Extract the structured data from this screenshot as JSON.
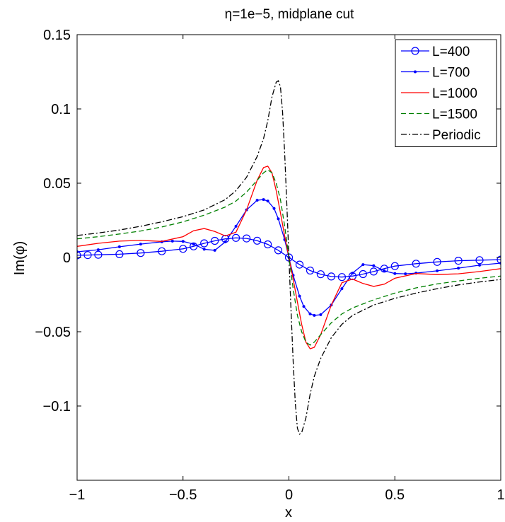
{
  "chart_data": {
    "type": "line",
    "title": "η=1e−5, midplane cut",
    "xlabel": "x",
    "ylabel": "Im(φ)",
    "xlim": [
      -1,
      1
    ],
    "ylim": [
      -0.15,
      0.15
    ],
    "x_ticks": [
      -1,
      -0.5,
      0,
      0.5,
      1
    ],
    "x_tick_labels": [
      "−1",
      "−0.5",
      "0",
      "0.5",
      "1"
    ],
    "y_ticks": [
      -0.1,
      -0.05,
      0,
      0.05,
      0.1,
      0.15
    ],
    "y_tick_labels": [
      "−0.1",
      "−0.05",
      "0",
      "0.05",
      "0.1",
      "0.15"
    ],
    "legend_position": "top-right",
    "grid": false,
    "series": [
      {
        "name": "L=400",
        "color": "#0000ff",
        "style": "solid",
        "marker": "circle",
        "x": [
          -1.0,
          -0.95,
          -0.9,
          -0.8,
          -0.7,
          -0.6,
          -0.5,
          -0.45,
          -0.4,
          -0.35,
          -0.3,
          -0.25,
          -0.2,
          -0.15,
          -0.1,
          -0.05,
          0.0,
          0.05,
          0.1,
          0.15,
          0.2,
          0.25,
          0.3,
          0.35,
          0.4,
          0.45,
          0.5,
          0.6,
          0.7,
          0.8,
          0.9,
          1.0
        ],
        "values": [
          0.0015,
          0.0016,
          0.0018,
          0.0022,
          0.003,
          0.0042,
          0.0058,
          0.0075,
          0.0095,
          0.0112,
          0.0125,
          0.0132,
          0.0128,
          0.0113,
          0.0088,
          0.0048,
          0.0,
          -0.0048,
          -0.0088,
          -0.0113,
          -0.0128,
          -0.0132,
          -0.0125,
          -0.0112,
          -0.0095,
          -0.0075,
          -0.0058,
          -0.0042,
          -0.003,
          -0.0022,
          -0.0018,
          -0.0015
        ]
      },
      {
        "name": "L=700",
        "color": "#0000ff",
        "style": "solid",
        "marker": "dot",
        "x": [
          -1.0,
          -0.9,
          -0.8,
          -0.7,
          -0.6,
          -0.55,
          -0.5,
          -0.45,
          -0.4,
          -0.35,
          -0.3,
          -0.25,
          -0.2,
          -0.15,
          -0.12,
          -0.1,
          -0.07,
          -0.05,
          -0.02,
          0.0,
          0.02,
          0.05,
          0.07,
          0.1,
          0.12,
          0.15,
          0.2,
          0.25,
          0.3,
          0.35,
          0.4,
          0.45,
          0.5,
          0.55,
          0.6,
          0.7,
          0.8,
          0.9,
          1.0
        ],
        "values": [
          0.0038,
          0.0052,
          0.0072,
          0.009,
          0.0105,
          0.011,
          0.0108,
          0.009,
          0.0055,
          0.0048,
          0.0105,
          0.021,
          0.032,
          0.0385,
          0.039,
          0.038,
          0.033,
          0.026,
          0.012,
          0.0,
          -0.012,
          -0.026,
          -0.033,
          -0.038,
          -0.039,
          -0.0385,
          -0.032,
          -0.021,
          -0.0105,
          -0.0048,
          -0.0055,
          -0.009,
          -0.0108,
          -0.011,
          -0.0105,
          -0.009,
          -0.0072,
          -0.0052,
          -0.0038
        ]
      },
      {
        "name": "L=1000",
        "color": "#ff0000",
        "style": "solid",
        "marker": "none",
        "x": [
          -1.0,
          -0.9,
          -0.8,
          -0.7,
          -0.6,
          -0.5,
          -0.45,
          -0.4,
          -0.35,
          -0.3,
          -0.25,
          -0.2,
          -0.15,
          -0.12,
          -0.1,
          -0.08,
          -0.06,
          -0.04,
          -0.02,
          0.0,
          0.02,
          0.04,
          0.06,
          0.08,
          0.1,
          0.12,
          0.15,
          0.2,
          0.25,
          0.3,
          0.35,
          0.4,
          0.45,
          0.5,
          0.6,
          0.7,
          0.8,
          0.9,
          1.0
        ],
        "values": [
          0.0075,
          0.0095,
          0.011,
          0.0115,
          0.0108,
          0.014,
          0.018,
          0.0195,
          0.0175,
          0.0145,
          0.017,
          0.032,
          0.052,
          0.0605,
          0.0615,
          0.057,
          0.045,
          0.03,
          0.0145,
          0.0,
          -0.0145,
          -0.03,
          -0.045,
          -0.057,
          -0.0615,
          -0.0605,
          -0.052,
          -0.032,
          -0.017,
          -0.0145,
          -0.0175,
          -0.0195,
          -0.018,
          -0.014,
          -0.0108,
          -0.0115,
          -0.011,
          -0.0095,
          -0.0075
        ]
      },
      {
        "name": "L=1500",
        "color": "#008000",
        "style": "dashed",
        "marker": "none",
        "x": [
          -1.0,
          -0.9,
          -0.8,
          -0.7,
          -0.6,
          -0.5,
          -0.4,
          -0.3,
          -0.25,
          -0.2,
          -0.15,
          -0.12,
          -0.1,
          -0.08,
          -0.06,
          -0.04,
          -0.02,
          0.0,
          0.02,
          0.04,
          0.06,
          0.08,
          0.1,
          0.12,
          0.15,
          0.2,
          0.25,
          0.3,
          0.4,
          0.5,
          0.6,
          0.7,
          0.8,
          0.9,
          1.0
        ],
        "values": [
          0.0125,
          0.014,
          0.0158,
          0.0178,
          0.0205,
          0.024,
          0.0285,
          0.034,
          0.038,
          0.044,
          0.052,
          0.057,
          0.059,
          0.057,
          0.05,
          0.039,
          0.021,
          0.0,
          -0.021,
          -0.039,
          -0.05,
          -0.057,
          -0.059,
          -0.057,
          -0.052,
          -0.044,
          -0.038,
          -0.034,
          -0.0285,
          -0.024,
          -0.0205,
          -0.0178,
          -0.0158,
          -0.014,
          -0.0125
        ]
      },
      {
        "name": "Periodic",
        "color": "#000000",
        "style": "dashdot",
        "marker": "none",
        "x": [
          -1.0,
          -0.9,
          -0.8,
          -0.7,
          -0.6,
          -0.5,
          -0.4,
          -0.3,
          -0.25,
          -0.2,
          -0.15,
          -0.12,
          -0.1,
          -0.08,
          -0.06,
          -0.05,
          -0.04,
          -0.03,
          -0.02,
          -0.01,
          0.0,
          0.01,
          0.02,
          0.03,
          0.04,
          0.05,
          0.06,
          0.08,
          0.1,
          0.12,
          0.15,
          0.2,
          0.25,
          0.3,
          0.4,
          0.5,
          0.6,
          0.7,
          0.8,
          0.9,
          1.0
        ],
        "values": [
          0.0148,
          0.0165,
          0.0185,
          0.021,
          0.024,
          0.0275,
          0.032,
          0.039,
          0.045,
          0.054,
          0.068,
          0.08,
          0.092,
          0.108,
          0.118,
          0.119,
          0.115,
          0.098,
          0.07,
          0.036,
          0.0,
          -0.036,
          -0.07,
          -0.098,
          -0.115,
          -0.119,
          -0.118,
          -0.108,
          -0.092,
          -0.08,
          -0.068,
          -0.054,
          -0.045,
          -0.039,
          -0.032,
          -0.0275,
          -0.024,
          -0.021,
          -0.0185,
          -0.0165,
          -0.0148
        ]
      }
    ]
  }
}
